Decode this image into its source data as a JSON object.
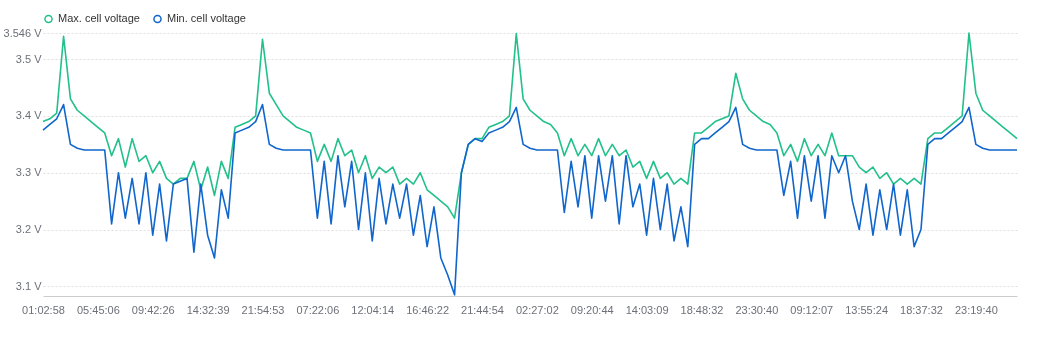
{
  "chart_data": {
    "type": "line",
    "categories": [
      "01:02:58",
      null,
      null,
      null,
      null,
      null,
      null,
      null,
      "05:45:06",
      null,
      null,
      null,
      null,
      null,
      null,
      null,
      "09:42:26",
      null,
      null,
      null,
      null,
      null,
      null,
      null,
      "14:32:39",
      null,
      null,
      null,
      null,
      null,
      null,
      null,
      "21:54:53",
      null,
      null,
      null,
      null,
      null,
      null,
      null,
      "07:22:06",
      null,
      null,
      null,
      null,
      null,
      null,
      null,
      "12:04:14",
      null,
      null,
      null,
      null,
      null,
      null,
      null,
      "16:46:22",
      null,
      null,
      null,
      null,
      null,
      null,
      null,
      "21:44:54",
      null,
      null,
      null,
      null,
      null,
      null,
      null,
      "02:27:02",
      null,
      null,
      null,
      null,
      null,
      null,
      null,
      "09:20:44",
      null,
      null,
      null,
      null,
      null,
      null,
      null,
      "14:03:09",
      null,
      null,
      null,
      null,
      null,
      null,
      null,
      "18:48:32",
      null,
      null,
      null,
      null,
      null,
      null,
      null,
      "23:30:40",
      null,
      null,
      null,
      null,
      null,
      null,
      null,
      "09:12:07",
      null,
      null,
      null,
      null,
      null,
      null,
      null,
      "13:55:24",
      null,
      null,
      null,
      null,
      null,
      null,
      null,
      "18:37:32",
      null,
      null,
      null,
      null,
      null,
      null,
      null,
      "23:19:40",
      null,
      null,
      null,
      null,
      null,
      null
    ],
    "series": [
      {
        "name": "Max. cell voltage",
        "color": "#22c08a",
        "values": [
          3.39,
          3.395,
          3.405,
          3.54,
          3.43,
          3.41,
          3.4,
          3.39,
          3.38,
          3.37,
          3.33,
          3.36,
          3.31,
          3.36,
          3.32,
          3.33,
          3.3,
          3.32,
          3.29,
          3.28,
          3.29,
          3.29,
          3.32,
          3.27,
          3.31,
          3.26,
          3.32,
          3.29,
          3.38,
          3.385,
          3.39,
          3.4,
          3.535,
          3.44,
          3.42,
          3.4,
          3.39,
          3.38,
          3.375,
          3.37,
          3.32,
          3.35,
          3.32,
          3.36,
          3.33,
          3.34,
          3.3,
          3.33,
          3.29,
          3.31,
          3.3,
          3.31,
          3.28,
          3.29,
          3.28,
          3.3,
          3.27,
          3.26,
          3.25,
          3.24,
          3.22,
          3.3,
          3.35,
          3.36,
          3.36,
          3.38,
          3.385,
          3.39,
          3.4,
          3.545,
          3.43,
          3.41,
          3.4,
          3.39,
          3.385,
          3.37,
          3.33,
          3.36,
          3.33,
          3.35,
          3.33,
          3.36,
          3.33,
          3.35,
          3.33,
          3.34,
          3.31,
          3.32,
          3.29,
          3.32,
          3.29,
          3.3,
          3.28,
          3.29,
          3.28,
          3.37,
          3.37,
          3.38,
          3.39,
          3.395,
          3.4,
          3.475,
          3.43,
          3.41,
          3.4,
          3.39,
          3.385,
          3.37,
          3.33,
          3.35,
          3.32,
          3.36,
          3.33,
          3.35,
          3.33,
          3.37,
          3.33,
          3.33,
          3.33,
          3.31,
          3.3,
          3.31,
          3.29,
          3.3,
          3.28,
          3.29,
          3.28,
          3.29,
          3.28,
          3.36,
          3.37,
          3.37,
          3.38,
          3.39,
          3.4,
          3.546,
          3.44,
          3.41,
          3.4,
          3.39,
          3.38,
          3.37,
          3.36
        ]
      },
      {
        "name": "Min. cell voltage",
        "color": "#1066cc",
        "values": [
          3.375,
          3.385,
          3.395,
          3.42,
          3.35,
          3.343,
          3.34,
          3.34,
          3.34,
          3.34,
          3.21,
          3.3,
          3.22,
          3.29,
          3.21,
          3.3,
          3.19,
          3.28,
          3.18,
          3.28,
          3.285,
          3.29,
          3.16,
          3.28,
          3.19,
          3.15,
          3.27,
          3.22,
          3.37,
          3.375,
          3.38,
          3.39,
          3.42,
          3.35,
          3.343,
          3.34,
          3.34,
          3.34,
          3.34,
          3.34,
          3.22,
          3.32,
          3.21,
          3.33,
          3.24,
          3.32,
          3.2,
          3.3,
          3.18,
          3.29,
          3.21,
          3.28,
          3.22,
          3.28,
          3.19,
          3.26,
          3.17,
          3.24,
          3.15,
          3.12,
          3.085,
          3.3,
          3.35,
          3.36,
          3.355,
          3.37,
          3.375,
          3.38,
          3.39,
          3.415,
          3.35,
          3.343,
          3.34,
          3.34,
          3.34,
          3.34,
          3.23,
          3.32,
          3.24,
          3.33,
          3.22,
          3.33,
          3.25,
          3.33,
          3.21,
          3.33,
          3.24,
          3.28,
          3.19,
          3.29,
          3.2,
          3.28,
          3.18,
          3.24,
          3.17,
          3.35,
          3.36,
          3.36,
          3.37,
          3.38,
          3.39,
          3.415,
          3.35,
          3.343,
          3.34,
          3.34,
          3.34,
          3.34,
          3.26,
          3.32,
          3.22,
          3.33,
          3.25,
          3.33,
          3.22,
          3.33,
          3.3,
          3.33,
          3.25,
          3.2,
          3.28,
          3.19,
          3.27,
          3.2,
          3.28,
          3.19,
          3.27,
          3.17,
          3.2,
          3.35,
          3.36,
          3.36,
          3.37,
          3.38,
          3.39,
          3.415,
          3.35,
          3.343,
          3.34,
          3.34,
          3.34,
          3.34,
          3.34
        ]
      }
    ],
    "ylim": [
      3.083,
      3.546
    ],
    "yticks": [
      {
        "value": 3.1,
        "label": "3.1 V"
      },
      {
        "value": 3.2,
        "label": "3.2 V"
      },
      {
        "value": 3.3,
        "label": "3.3 V"
      },
      {
        "value": 3.4,
        "label": "3.4 V"
      },
      {
        "value": 3.5,
        "label": "3.5 V"
      },
      {
        "value": 3.546,
        "label": "3.546 V"
      }
    ],
    "grid": "y",
    "legend": "top"
  }
}
